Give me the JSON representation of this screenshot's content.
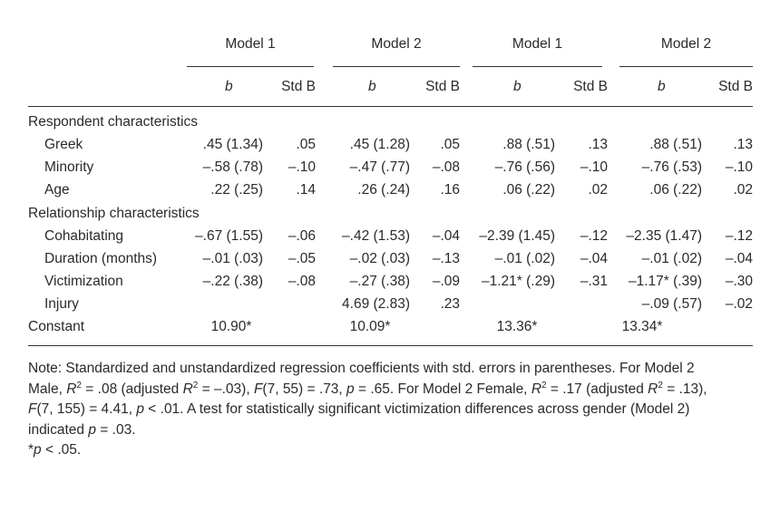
{
  "group_headers": [
    "Model 1",
    "Model 2",
    "Model 1",
    "Model 2"
  ],
  "col_headers": [
    "b",
    "Std B",
    "b",
    "Std B",
    "b",
    "Std B",
    "b",
    "Std B"
  ],
  "sections": {
    "respondent": "Respondent characteristics",
    "relationship": "Relationship characteristics"
  },
  "rows": [
    {
      "label": "Greek",
      "cells": [
        ".45 (1.34)",
        ".05",
        ".45 (1.28)",
        ".05",
        ".88 (.51)",
        ".13",
        ".88 (.51)",
        ".13"
      ]
    },
    {
      "label": "Minority",
      "cells": [
        "–.58 (.78)",
        "–.10",
        "–.47 (.77)",
        "–.08",
        "–.76 (.56)",
        "–.10",
        "–.76 (.53)",
        "–.10"
      ]
    },
    {
      "label": "Age",
      "cells": [
        ".22 (.25)",
        ".14",
        ".26 (.24)",
        ".16",
        ".06 (.22)",
        ".02",
        ".06 (.22)",
        ".02"
      ]
    },
    {
      "label": "Cohabitating",
      "cells": [
        "–.67 (1.55)",
        "–.06",
        "–.42 (1.53)",
        "–.04",
        "–2.39 (1.45)",
        "–.12",
        "–2.35 (1.47)",
        "–.12"
      ]
    },
    {
      "label": "Duration (months)",
      "cells": [
        "–.01 (.03)",
        "–.05",
        "–.02 (.03)",
        "–.13",
        "–.01 (.02)",
        "–.04",
        "–.01 (.02)",
        "–.04"
      ]
    },
    {
      "label": "Victimization",
      "cells": [
        "–.22 (.38)",
        "–.08",
        "–.27 (.38)",
        "–.09",
        "–1.21* (.29)",
        "–.31",
        "–1.17* (.39)",
        "–.30"
      ]
    },
    {
      "label": "Injury",
      "cells": [
        "",
        "",
        "4.69 (2.83)",
        ".23",
        "",
        "",
        "–.09 (.57)",
        "–.02"
      ]
    },
    {
      "label": "Constant",
      "cells": [
        "10.90*",
        "",
        "10.09*",
        "",
        "13.36*",
        "",
        "13.34*",
        ""
      ]
    }
  ],
  "note": {
    "l1": "Note: Standardized and unstandardized regression coefficients with std. errors in parentheses. For Model 2",
    "l2a": "Male, ",
    "l2b": "R",
    "l2c": "2",
    "l2d": " = .08 (adjusted ",
    "l2e": "R",
    "l2f": "2",
    "l2g": " = –.03), ",
    "l2h": "F",
    "l2i": "(7, 55) = .73, ",
    "l2j": "p",
    "l2k": " = .65. For Model 2 Female, ",
    "l2l": "R",
    "l2m": "2",
    "l2n": " = .17 (adjusted ",
    "l2o": "R",
    "l2p": "2",
    "l2q": " = .13),",
    "l3a": "F",
    "l3b": "(7, 155) = 4.41, ",
    "l3c": "p",
    "l3d": " < .01. A test for statistically significant victimization differences across gender (Model 2)",
    "l4a": "indicated ",
    "l4b": "p",
    "l4c": " = .03.",
    "l5a": "*",
    "l5b": "p",
    "l5c": " < .05."
  }
}
